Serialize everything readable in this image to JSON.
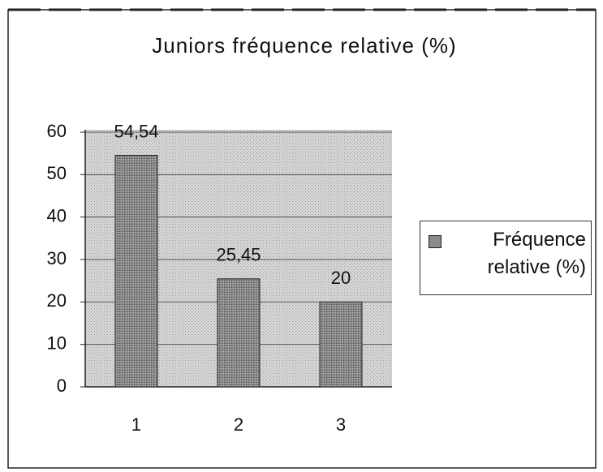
{
  "chart_data": {
    "type": "bar",
    "title": "Juniors fréquence relative (%)",
    "categories": [
      "1",
      "2",
      "3"
    ],
    "series": [
      {
        "name": "Fréquence relative (%)",
        "color": "#8a8a8a",
        "values": [
          54.54,
          25.45,
          20
        ],
        "value_labels": [
          "54,54",
          "25,45",
          "20"
        ]
      }
    ],
    "ylim": [
      0,
      60
    ],
    "yticks": [
      0,
      10,
      20,
      30,
      40,
      50,
      60
    ],
    "grid": true,
    "legend": "right"
  }
}
